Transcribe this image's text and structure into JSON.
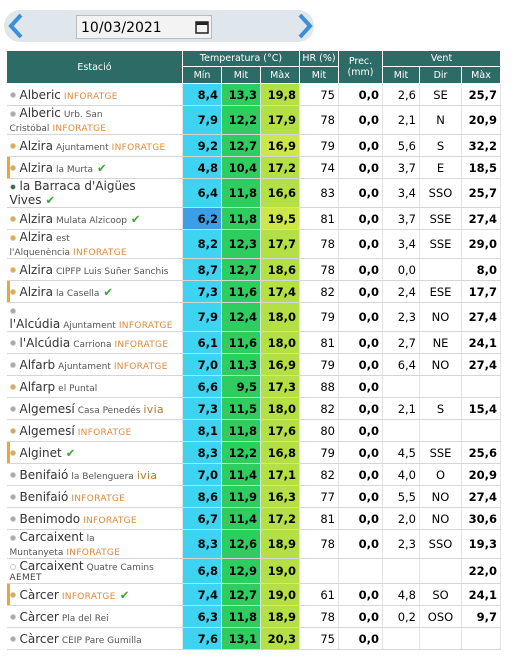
{
  "date": "10/03/2021",
  "header": {
    "station": "Estació",
    "temperature": "Temperatura (°C)",
    "temp_cols": [
      "Mín",
      "Mit",
      "Màx"
    ],
    "humidity": "HR (%)",
    "humidity_cols": [
      "Mit"
    ],
    "precipitation": "Prec. (mm)",
    "wind": "Vent",
    "wind_cols": [
      "Mit",
      "Dir",
      "Màx"
    ]
  },
  "rows": [
    {
      "name": "Alberic",
      "source": "INFORATGE",
      "dot": "#a9a9a9",
      "cells": [
        "8,4",
        "13,3",
        "19,8",
        "75",
        "0,0",
        "2,6",
        "SE",
        "25,7"
      ]
    },
    {
      "name": "Alberic",
      "detail": "Urb. San Cristóbal",
      "source": "INFORATGE",
      "dot": "#a9a9a9",
      "cells": [
        "7,9",
        "12,2",
        "17,9",
        "78",
        "0,0",
        "2,1",
        "N",
        "20,9"
      ]
    },
    {
      "name": "Alzira",
      "detail": "Ajuntament",
      "source": "INFORATGE",
      "dot": "#e8a838",
      "cells": [
        "9,2",
        "12,7",
        "16,9",
        "79",
        "0,0",
        "5,6",
        "S",
        "32,2"
      ]
    },
    {
      "name": "Alzira",
      "detail": "la Murta",
      "verified": true,
      "dot": "#e8a838",
      "highlighted": true,
      "cells": [
        "4,8",
        "10,4",
        "17,2",
        "74",
        "0,0",
        "3,7",
        "E",
        "18,5"
      ]
    },
    {
      "name": "la Barraca d'Aigües Vives",
      "verified": true,
      "dot": "#1f6f4a",
      "cells": [
        "6,4",
        "11,8",
        "16,6",
        "83",
        "0,0",
        "3,4",
        "SSO",
        "25,7"
      ]
    },
    {
      "name": "Alzira",
      "detail": "Mulata Alzicoop",
      "verified": true,
      "dot": "#e8a838",
      "cells": [
        "6,2",
        "11,8",
        "19,5",
        "81",
        "0,0",
        "3,7",
        "SSE",
        "27,4"
      ]
    },
    {
      "name": "Alzira",
      "detail": "est l'Alquenència",
      "source": "INFORATGE",
      "dot": "#e8a838",
      "cells": [
        "8,2",
        "12,3",
        "17,7",
        "78",
        "0,0",
        "3,4",
        "SSE",
        "29,0"
      ]
    },
    {
      "name": "Alzira",
      "detail": "CIPFP Luis Suñer Sanchis",
      "dot": "#e8a838",
      "cells": [
        "8,7",
        "12,7",
        "18,6",
        "78",
        "0,0",
        "0,0",
        null,
        "8,0"
      ]
    },
    {
      "name": "Alzira",
      "detail": "la Casella",
      "verified": true,
      "dot": "#e8a838",
      "highlighted": true,
      "cells": [
        "7,3",
        "11,6",
        "17,4",
        "82",
        "0,0",
        "2,4",
        "ESE",
        "17,7"
      ]
    },
    {
      "name": "l'Alcúdia",
      "detail": "Ajuntament",
      "source": "INFORATGE",
      "dot": "#a9a9a9",
      "cells": [
        "7,9",
        "12,4",
        "18,0",
        "79",
        "0,0",
        "2,3",
        "NO",
        "27,4"
      ]
    },
    {
      "name": "l'Alcúdia",
      "detail": "Carriona",
      "source": "INFORATGE",
      "dot": "#a9a9a9",
      "cells": [
        "6,1",
        "11,6",
        "18,0",
        "81",
        "0,0",
        "2,7",
        "NE",
        "24,1"
      ]
    },
    {
      "name": "Alfarb",
      "detail": "Ajuntament",
      "source": "INFORATGE",
      "dot": "#a9a9a9",
      "cells": [
        "7,0",
        "11,3",
        "16,9",
        "79",
        "0,0",
        "6,4",
        "NO",
        "27,4"
      ]
    },
    {
      "name": "Alfarp",
      "detail": "el Puntal",
      "dot": "#e8a838",
      "cells": [
        "6,6",
        "9,5",
        "17,3",
        "88",
        "0,0",
        null,
        null,
        null
      ]
    },
    {
      "name": "Algemesí",
      "detail": "Casa Penedés",
      "source": "ivia",
      "dot": "#a9a9a9",
      "cells": [
        "7,3",
        "11,5",
        "18,0",
        "82",
        "0,0",
        "2,1",
        "S",
        "15,4"
      ]
    },
    {
      "name": "Algemesí",
      "source": "INFORATGE",
      "dot": "#e8a838",
      "cells": [
        "8,1",
        "11,8",
        "17,6",
        "80",
        "0,0",
        null,
        null,
        null
      ]
    },
    {
      "name": "Alginet",
      "verified": true,
      "dot": "#e8a838",
      "highlighted": true,
      "cells": [
        "8,3",
        "12,2",
        "16,8",
        "79",
        "0,0",
        "4,5",
        "SSE",
        "25,6"
      ]
    },
    {
      "name": "Benifaió",
      "detail": "la Belenguera",
      "source": "ivia",
      "dot": "#a9a9a9",
      "cells": [
        "7,0",
        "11,4",
        "17,1",
        "82",
        "0,0",
        "4,0",
        "O",
        "20,9"
      ]
    },
    {
      "name": "Benifaió",
      "source": "INFORATGE",
      "dot": "#a9a9a9",
      "cells": [
        "8,6",
        "11,9",
        "16,3",
        "77",
        "0,0",
        "5,5",
        "NO",
        "27,4"
      ]
    },
    {
      "name": "Benimodo",
      "source": "INFORATGE",
      "dot": "#a9a9a9",
      "cells": [
        "6,7",
        "11,4",
        "17,2",
        "81",
        "0,0",
        "2,0",
        "NO",
        "30,6"
      ]
    },
    {
      "name": "Carcaixent",
      "detail": "la Muntanyeta",
      "source": "INFORATGE",
      "dot": "#a9a9a9",
      "cells": [
        "8,3",
        "12,6",
        "18,9",
        "78",
        "0,0",
        "2,3",
        "SSO",
        "19,3"
      ]
    },
    {
      "name": "Carcaixent",
      "detail": "Quatre Camins",
      "source": "AEMET",
      "dot": "#ffffff",
      "cells": [
        "6,8",
        "12,9",
        "19,0",
        null,
        null,
        null,
        null,
        "22,0"
      ]
    },
    {
      "name": "Càrcer",
      "source": "INFORATGE",
      "verified": true,
      "dot": "#e8a838",
      "highlighted": true,
      "cells": [
        "7,4",
        "12,7",
        "19,0",
        "61",
        "0,0",
        "4,8",
        "SO",
        "24,1"
      ]
    },
    {
      "name": "Càrcer",
      "detail": "Pla del Rei",
      "dot": "#a9a9a9",
      "cells": [
        "6,3",
        "11,8",
        "18,9",
        "78",
        "0,0",
        "0,2",
        "OSO",
        "9,7"
      ]
    },
    {
      "name": "Càrcer",
      "detail": "CEIP Pare Gumilla",
      "dot": "#a9a9a9",
      "cells": [
        "7,6",
        "13,1",
        "20,3",
        "75",
        "0,0",
        null,
        null,
        null
      ]
    }
  ]
}
